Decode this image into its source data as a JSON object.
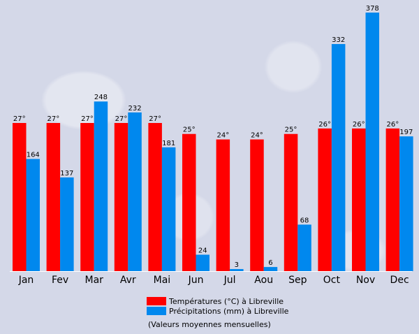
{
  "colors": {
    "temperature": "#ff0000",
    "precipitation": "#0088ee",
    "background": "#d6dae8"
  },
  "legend": {
    "temperature": "Températures (°C) à Libreville",
    "precipitation": "Précipitations (mm) à Libreville"
  },
  "note": "(Valeurs moyennes mensuelles)",
  "chart_data": {
    "type": "bar",
    "categories": [
      "Jan",
      "Fev",
      "Mar",
      "Avr",
      "Mai",
      "Jun",
      "Jul",
      "Aou",
      "Sep",
      "Oct",
      "Nov",
      "Dec"
    ],
    "series": [
      {
        "name": "Températures (°C) à Libreville",
        "values": [
          27,
          27,
          27,
          27,
          27,
          25,
          24,
          24,
          25,
          26,
          26,
          26
        ],
        "labels": [
          "27°",
          "27°",
          "27°",
          "27°",
          "27°",
          "25°",
          "24°",
          "24°",
          "25°",
          "26°",
          "26°",
          "26°"
        ]
      },
      {
        "name": "Précipitations (mm) à Libreville",
        "values": [
          164,
          137,
          248,
          232,
          181,
          24,
          3,
          6,
          68,
          332,
          378,
          197
        ],
        "labels": [
          "164",
          "137",
          "248",
          "232",
          "181",
          "24",
          "3",
          "6",
          "68",
          "332",
          "378",
          "197"
        ]
      }
    ]
  }
}
